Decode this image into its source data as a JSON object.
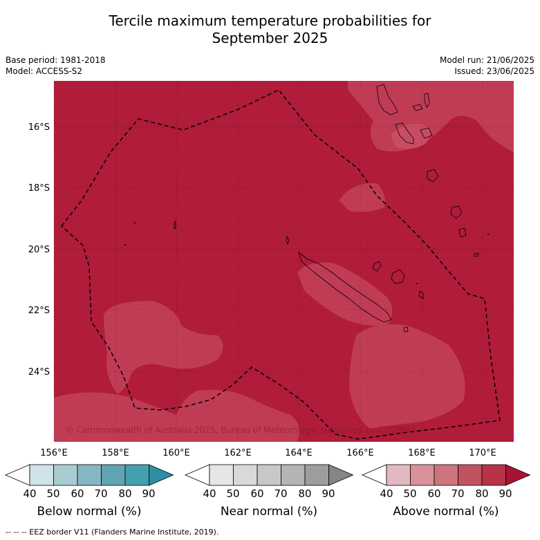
{
  "title_line1": "Tercile maximum temperature probabilities for",
  "title_line2": "September 2025",
  "meta_left": {
    "base_period": "Base period: 1981-2018",
    "model": "Model: ACCESS-S2"
  },
  "meta_right": {
    "model_run": "Model run: 21/06/2025",
    "issued": "Issued: 23/06/2025"
  },
  "map": {
    "lat_labels": [
      "16°S",
      "18°S",
      "20°S",
      "22°S",
      "24°S"
    ],
    "lon_labels": [
      "156°E",
      "158°E",
      "160°E",
      "162°E",
      "164°E",
      "166°E",
      "168°E",
      "170°E"
    ],
    "copyright": "© Commonwealth of Australia 2025, Bureau of Meteorology, supported by COSPPac",
    "colors": {
      "above_80": "#b01c3a",
      "above_70": "#c03c55",
      "land_outline": "#000000"
    }
  },
  "colorbars": [
    {
      "name": "below",
      "label": "Below normal (%)",
      "colors": [
        "#ffffff",
        "#cfe3e8",
        "#a9cbd2",
        "#86b6c1",
        "#62a3b1",
        "#43a0b0",
        "#2d8fa3"
      ],
      "ticks": [
        "40",
        "50",
        "60",
        "70",
        "80",
        "90"
      ]
    },
    {
      "name": "near",
      "label": "Near normal (%)",
      "colors": [
        "#ffffff",
        "#e6e6e6",
        "#d9d9d9",
        "#c8c8c8",
        "#b4b4b4",
        "#9d9d9d",
        "#858585"
      ],
      "ticks": [
        "40",
        "50",
        "60",
        "70",
        "80",
        "90"
      ]
    },
    {
      "name": "above",
      "label": "Above normal (%)",
      "colors": [
        "#ffffff",
        "#e3b8c0",
        "#d99099",
        "#cd747f",
        "#c3525f",
        "#b8324a",
        "#a81233"
      ],
      "ticks": [
        "40",
        "50",
        "60",
        "70",
        "80",
        "90"
      ]
    }
  ],
  "footer": "--  --  -- EEZ border V11 (Flanders Marine Institute, 2019)."
}
